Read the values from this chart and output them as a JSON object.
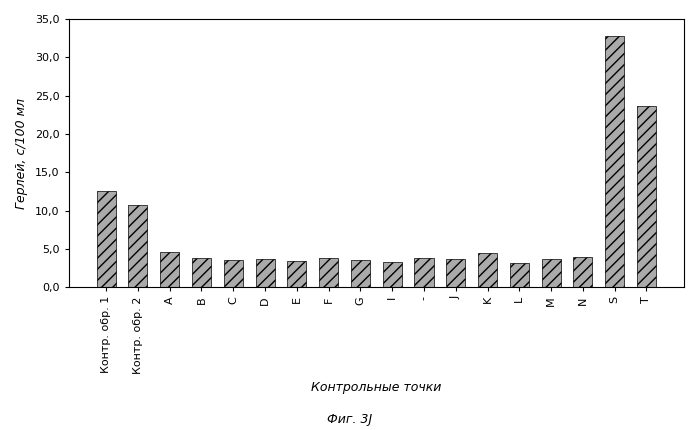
{
  "categories": [
    "Контр. обр. 1",
    "Контр. обр. 2",
    "A",
    "B",
    "C",
    "D",
    "E",
    "F",
    "G",
    "I",
    "-",
    "J",
    "K",
    "L",
    "M",
    "N",
    "S",
    "T"
  ],
  "values": [
    12.5,
    10.7,
    4.6,
    3.8,
    3.6,
    3.7,
    3.4,
    3.8,
    3.5,
    3.3,
    3.8,
    3.7,
    4.4,
    3.2,
    3.7,
    4.0,
    32.8,
    23.7
  ],
  "ylabel": "Герлей, с/100 мл",
  "xlabel": "Контрольные точки",
  "ylim": [
    0,
    35
  ],
  "yticks": [
    0.0,
    5.0,
    10.0,
    15.0,
    20.0,
    25.0,
    30.0,
    35.0
  ],
  "bar_color": "#aaaaaa",
  "bar_hatch": "///",
  "background_color": "#ffffff",
  "figure_caption": "Фиг. 3J",
  "title_fontsize": 10,
  "axis_fontsize": 9,
  "tick_fontsize": 8,
  "caption_fontsize": 9
}
